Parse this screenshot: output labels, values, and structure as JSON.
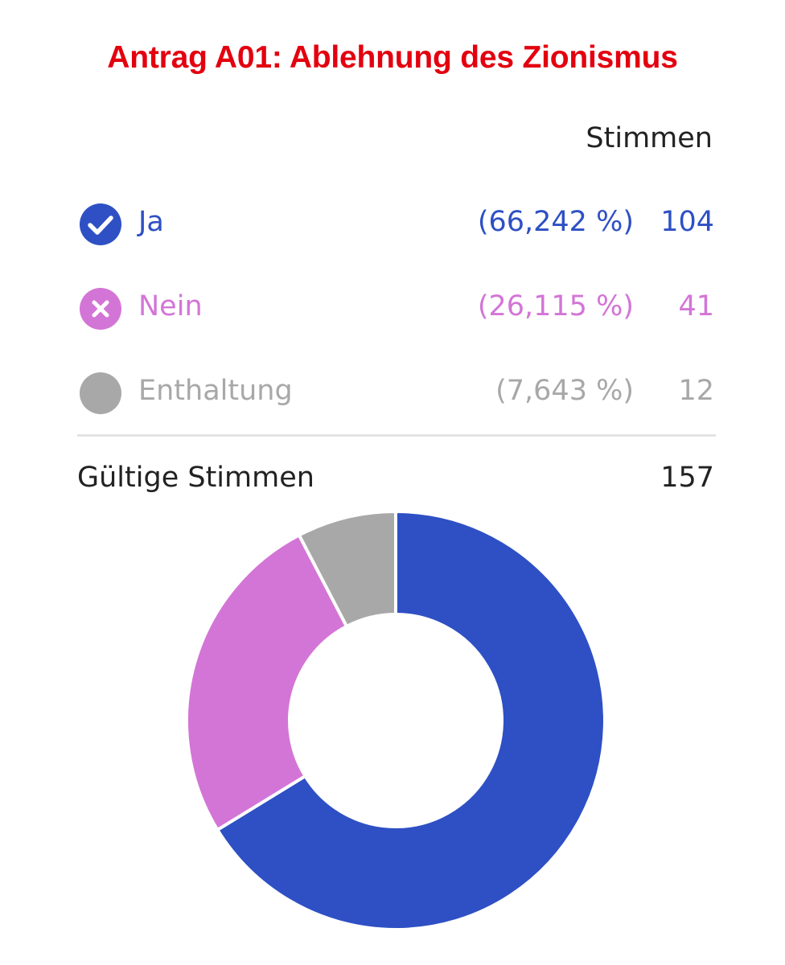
{
  "title": "Antrag A01: Ablehnung des Zionismus",
  "column_header": "Stimmen",
  "rows": [
    {
      "label": "Ja",
      "percent": "(66,242 %)",
      "count": "104",
      "color": "#2e50c4",
      "icon": "check-circle-icon"
    },
    {
      "label": "Nein",
      "percent": "(26,115 %)",
      "count": "41",
      "color": "#d375d6",
      "icon": "cross-circle-icon"
    },
    {
      "label": "Enthaltung",
      "percent": "(7,643 %)",
      "count": "12",
      "color": "#a8a8a8",
      "icon": "circle-icon"
    }
  ],
  "total": {
    "label": "Gültige Stimmen",
    "value": "157"
  },
  "chart_data": {
    "type": "pie",
    "categories": [
      "Ja",
      "Nein",
      "Enthaltung"
    ],
    "values": [
      104,
      41,
      12
    ],
    "colors": [
      "#2e50c4",
      "#d375d6",
      "#a8a8a8"
    ]
  }
}
